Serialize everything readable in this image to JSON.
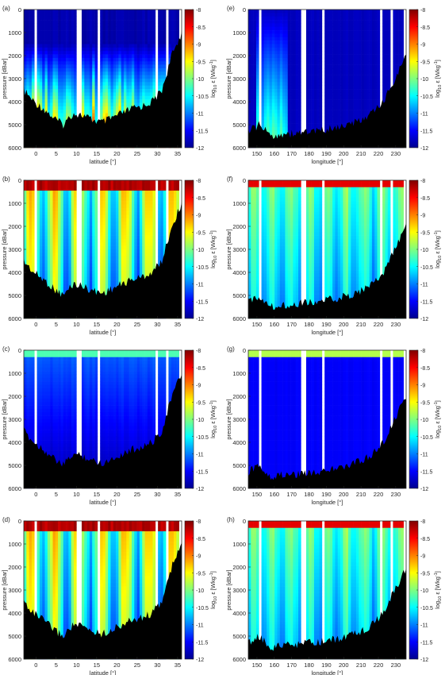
{
  "colorbar": {
    "ticks": [
      "-8",
      "-8.5",
      "-9",
      "-9.5",
      "-10",
      "-10.5",
      "-11",
      "-11.5",
      "-12"
    ],
    "range": [
      -12,
      -8
    ],
    "colormap": "jet",
    "label_base": "log",
    "label_sub": "10",
    "label_eps": " ε [Wkg",
    "label_sup": "-1",
    "label_end": "]"
  },
  "chart_data": [
    {
      "id": "a",
      "panel_label": "(a)",
      "type": "heatmap",
      "xlabel": "latitude [°]",
      "ylabel": "pressure [dBar]",
      "xlim": [
        -3,
        36
      ],
      "ylim": [
        6000,
        0
      ],
      "xticks": [
        "0",
        "5",
        "10",
        "15",
        "20",
        "25",
        "30",
        "35"
      ],
      "yticks": [
        "0",
        "1000",
        "2000",
        "3000",
        "4000",
        "5000",
        "6000"
      ],
      "clim": [
        -12,
        -8
      ],
      "field": "intermediate",
      "depth_profile": [
        3500,
        4000,
        4300,
        4700,
        5000,
        4500,
        4600,
        4800,
        4900,
        4700,
        4500,
        4300,
        4200,
        4000,
        3500,
        2000,
        1000
      ]
    },
    {
      "id": "b",
      "panel_label": "(b)",
      "type": "heatmap",
      "xlabel": "latitude [°]",
      "ylabel": "pressure [dBar]",
      "xlim": [
        -3,
        36
      ],
      "ylim": [
        6000,
        0
      ],
      "xticks": [
        "0",
        "5",
        "10",
        "15",
        "20",
        "25",
        "30",
        "35"
      ],
      "yticks": [
        "0",
        "1000",
        "2000",
        "3000",
        "4000",
        "5000",
        "6000"
      ],
      "clim": [
        -12,
        -8
      ],
      "field": "high",
      "depth_profile": [
        3500,
        4000,
        4300,
        4700,
        5000,
        4500,
        4600,
        4800,
        4900,
        4700,
        4500,
        4300,
        4200,
        4000,
        3500,
        2000,
        1000
      ]
    },
    {
      "id": "c",
      "panel_label": "(c)",
      "type": "heatmap",
      "xlabel": "latitude [°]",
      "ylabel": "pressure [dBar]",
      "xlim": [
        -3,
        36
      ],
      "ylim": [
        6000,
        0
      ],
      "xticks": [
        "0",
        "5",
        "10",
        "15",
        "20",
        "25",
        "30",
        "35"
      ],
      "yticks": [
        "0",
        "1000",
        "2000",
        "3000",
        "4000",
        "5000",
        "6000"
      ],
      "clim": [
        -12,
        -8
      ],
      "field": "low",
      "depth_profile": [
        3500,
        4000,
        4300,
        4700,
        5000,
        4500,
        4600,
        4800,
        4900,
        4700,
        4500,
        4300,
        4200,
        4000,
        3500,
        2000,
        1000
      ]
    },
    {
      "id": "d",
      "panel_label": "(d)",
      "type": "heatmap",
      "xlabel": "latitude [°]",
      "ylabel": "pressure [dBar]",
      "xlim": [
        -3,
        36
      ],
      "ylim": [
        6000,
        0
      ],
      "xticks": [
        "0",
        "5",
        "10",
        "15",
        "20",
        "25",
        "30",
        "35"
      ],
      "yticks": [
        "0",
        "1000",
        "2000",
        "3000",
        "4000",
        "5000",
        "6000"
      ],
      "clim": [
        -12,
        -8
      ],
      "field": "high",
      "depth_profile": [
        3500,
        4000,
        4300,
        4700,
        5000,
        4500,
        4600,
        4800,
        4900,
        4700,
        4500,
        4300,
        4200,
        4000,
        3500,
        2000,
        1000
      ]
    },
    {
      "id": "e",
      "panel_label": "(e)",
      "type": "heatmap",
      "xlabel": "longitude [°]",
      "ylabel": "pressure [dBar]",
      "xlim": [
        145,
        236
      ],
      "ylim": [
        6000,
        0
      ],
      "xticks": [
        "150",
        "160",
        "170",
        "180",
        "190",
        "200",
        "210",
        "220",
        "230"
      ],
      "yticks": [
        "0",
        "1000",
        "2000",
        "3000",
        "4000",
        "5000",
        "6000"
      ],
      "clim": [
        -12,
        -8
      ],
      "field": "east_low",
      "depth_profile": [
        5300,
        5000,
        5500,
        5400,
        5400,
        5300,
        5300,
        5200,
        5100,
        5000,
        4800,
        4500,
        4000,
        3000,
        2000
      ]
    },
    {
      "id": "f",
      "panel_label": "(f)",
      "type": "heatmap",
      "xlabel": "longitude [°]",
      "ylabel": "pressure [dBar]",
      "xlim": [
        145,
        236
      ],
      "ylim": [
        6000,
        0
      ],
      "xticks": [
        "150",
        "160",
        "170",
        "180",
        "190",
        "200",
        "210",
        "220",
        "230"
      ],
      "yticks": [
        "0",
        "1000",
        "2000",
        "3000",
        "4000",
        "5000",
        "6000"
      ],
      "clim": [
        -12,
        -8
      ],
      "field": "east_mid",
      "depth_profile": [
        5300,
        5000,
        5500,
        5400,
        5400,
        5300,
        5300,
        5200,
        5100,
        5000,
        4800,
        4500,
        4000,
        3000,
        2000
      ]
    },
    {
      "id": "g",
      "panel_label": "(g)",
      "type": "heatmap",
      "xlabel": "longitude [°]",
      "ylabel": "pressure [dBar]",
      "xlim": [
        145,
        236
      ],
      "ylim": [
        6000,
        0
      ],
      "xticks": [
        "150",
        "160",
        "170",
        "180",
        "190",
        "200",
        "210",
        "220",
        "230"
      ],
      "yticks": [
        "0",
        "1000",
        "2000",
        "3000",
        "4000",
        "5000",
        "6000"
      ],
      "clim": [
        -12,
        -8
      ],
      "field": "east_vlow",
      "depth_profile": [
        5300,
        5000,
        5500,
        5400,
        5400,
        5300,
        5300,
        5200,
        5100,
        5000,
        4800,
        4500,
        4000,
        3000,
        2000
      ]
    },
    {
      "id": "h",
      "panel_label": "(h)",
      "type": "heatmap",
      "xlabel": "longitude [°]",
      "ylabel": "pressure [dBar]",
      "xlim": [
        145,
        236
      ],
      "ylim": [
        6000,
        0
      ],
      "xticks": [
        "150",
        "160",
        "170",
        "180",
        "190",
        "200",
        "210",
        "220",
        "230"
      ],
      "yticks": [
        "0",
        "1000",
        "2000",
        "3000",
        "4000",
        "5000",
        "6000"
      ],
      "clim": [
        -12,
        -8
      ],
      "field": "east_mid",
      "depth_profile": [
        5300,
        5000,
        5500,
        5400,
        5400,
        5300,
        5300,
        5200,
        5100,
        5000,
        4800,
        4500,
        4000,
        3000,
        2000
      ]
    }
  ]
}
